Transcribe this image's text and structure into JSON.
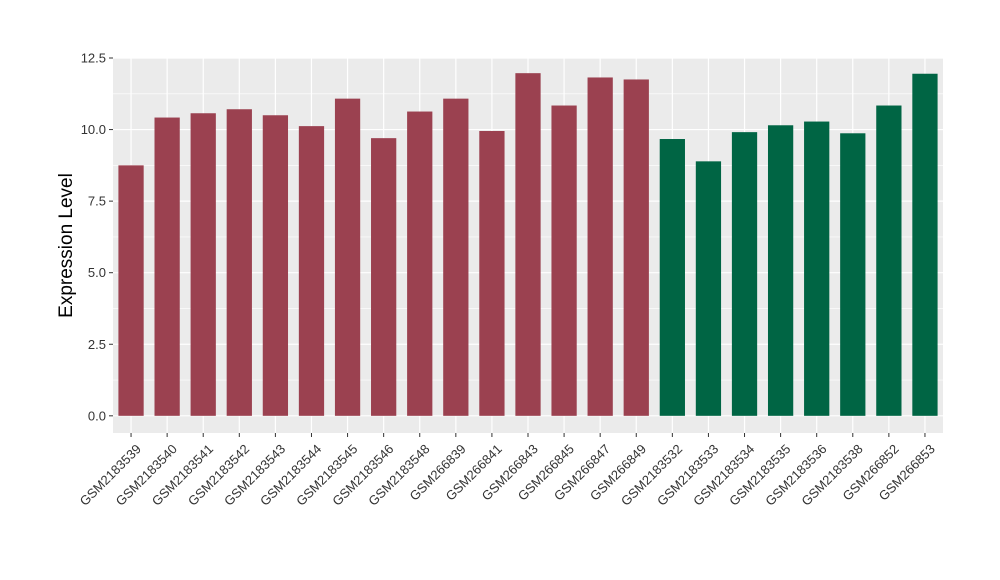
{
  "chart_data": {
    "type": "bar",
    "title": "",
    "xlabel": "",
    "ylabel": "Expression Level",
    "ylim": [
      -0.6,
      12.5
    ],
    "yticks": [
      "0.0",
      "2.5",
      "5.0",
      "7.5",
      "10.0",
      "12.5"
    ],
    "grid": true,
    "legend": "none",
    "colors": {
      "group1": "#9b4150",
      "group2": "#006544",
      "panel": "#ebebeb",
      "gridline": "#ffffff"
    },
    "categories": [
      "GSM2183539",
      "GSM2183540",
      "GSM2183541",
      "GSM2183542",
      "GSM2183543",
      "GSM2183544",
      "GSM2183545",
      "GSM2183546",
      "GSM2183548",
      "GSM266839",
      "GSM266841",
      "GSM266843",
      "GSM266845",
      "GSM266847",
      "GSM266849",
      "GSM2183532",
      "GSM2183533",
      "GSM2183534",
      "GSM2183535",
      "GSM2183536",
      "GSM2183538",
      "GSM266852",
      "GSM266853"
    ],
    "values": [
      8.75,
      10.42,
      10.57,
      10.71,
      10.5,
      10.12,
      11.08,
      9.7,
      10.63,
      11.08,
      9.95,
      11.97,
      10.84,
      11.82,
      11.75,
      9.67,
      8.89,
      9.91,
      10.15,
      10.28,
      9.87,
      10.84,
      11.95
    ],
    "groups": [
      "group1",
      "group1",
      "group1",
      "group1",
      "group1",
      "group1",
      "group1",
      "group1",
      "group1",
      "group1",
      "group1",
      "group1",
      "group1",
      "group1",
      "group1",
      "group2",
      "group2",
      "group2",
      "group2",
      "group2",
      "group2",
      "group2",
      "group2"
    ]
  }
}
